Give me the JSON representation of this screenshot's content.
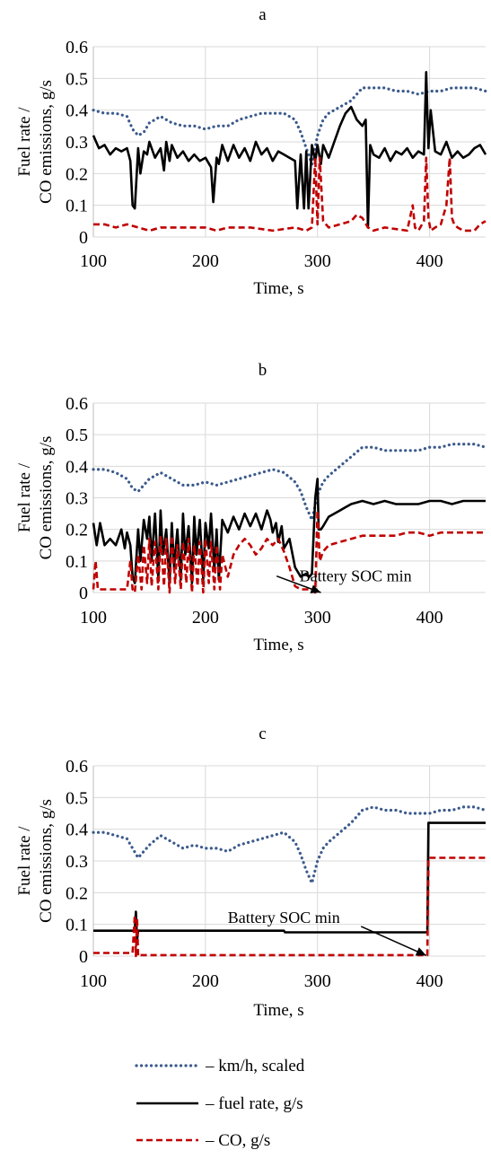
{
  "chart_data": [
    {
      "type": "line",
      "title": "a",
      "xlabel": "Time, s",
      "ylabel_line1": "Fuel rate /",
      "ylabel_line2": "CO emissions, g/s",
      "xlim": [
        100,
        450
      ],
      "ylim": [
        0,
        0.6
      ],
      "xticks": [
        100,
        200,
        300,
        400
      ],
      "yticks": [
        0,
        0.1,
        0.2,
        0.3,
        0.4,
        0.5,
        0.6
      ],
      "annotations": [],
      "series": [
        {
          "key": "speed",
          "style": "dotted",
          "color": "#3b5a8c",
          "x": [
            100,
            110,
            120,
            130,
            135,
            140,
            145,
            150,
            160,
            170,
            180,
            190,
            200,
            210,
            220,
            230,
            240,
            250,
            260,
            270,
            280,
            285,
            290,
            295,
            300,
            305,
            310,
            320,
            330,
            340,
            350,
            360,
            370,
            380,
            390,
            400,
            410,
            420,
            430,
            440,
            450
          ],
          "y": [
            0.4,
            0.39,
            0.39,
            0.38,
            0.34,
            0.32,
            0.33,
            0.36,
            0.38,
            0.36,
            0.35,
            0.35,
            0.34,
            0.35,
            0.35,
            0.37,
            0.38,
            0.39,
            0.39,
            0.39,
            0.37,
            0.33,
            0.28,
            0.23,
            0.32,
            0.37,
            0.39,
            0.41,
            0.43,
            0.47,
            0.47,
            0.47,
            0.46,
            0.46,
            0.45,
            0.46,
            0.46,
            0.47,
            0.47,
            0.47,
            0.46
          ]
        },
        {
          "key": "fuel",
          "style": "solid",
          "color": "#000000",
          "x": [
            100,
            105,
            110,
            115,
            120,
            125,
            130,
            133,
            135,
            137,
            140,
            142,
            145,
            148,
            150,
            155,
            160,
            163,
            165,
            168,
            170,
            175,
            180,
            185,
            190,
            195,
            200,
            205,
            207,
            210,
            212,
            215,
            220,
            225,
            230,
            235,
            240,
            245,
            250,
            255,
            260,
            265,
            270,
            275,
            280,
            282,
            285,
            288,
            290,
            292,
            295,
            298,
            300,
            303,
            305,
            310,
            315,
            320,
            325,
            330,
            335,
            340,
            343,
            345,
            347,
            350,
            355,
            360,
            365,
            370,
            375,
            380,
            385,
            390,
            395,
            397,
            399,
            401,
            405,
            410,
            415,
            420,
            425,
            430,
            435,
            440,
            445,
            450
          ],
          "y": [
            0.32,
            0.28,
            0.29,
            0.26,
            0.28,
            0.27,
            0.28,
            0.24,
            0.1,
            0.09,
            0.28,
            0.2,
            0.27,
            0.26,
            0.3,
            0.25,
            0.28,
            0.21,
            0.3,
            0.24,
            0.29,
            0.25,
            0.27,
            0.24,
            0.26,
            0.24,
            0.25,
            0.22,
            0.11,
            0.25,
            0.23,
            0.29,
            0.24,
            0.29,
            0.25,
            0.28,
            0.24,
            0.3,
            0.26,
            0.28,
            0.24,
            0.27,
            0.26,
            0.25,
            0.24,
            0.09,
            0.26,
            0.09,
            0.27,
            0.09,
            0.29,
            0.24,
            0.29,
            0.23,
            0.29,
            0.25,
            0.3,
            0.35,
            0.39,
            0.41,
            0.37,
            0.35,
            0.37,
            0.03,
            0.29,
            0.26,
            0.25,
            0.28,
            0.24,
            0.27,
            0.26,
            0.28,
            0.25,
            0.27,
            0.26,
            0.52,
            0.28,
            0.4,
            0.27,
            0.26,
            0.3,
            0.25,
            0.27,
            0.25,
            0.26,
            0.28,
            0.29,
            0.26
          ]
        },
        {
          "key": "co",
          "style": "dashed",
          "color": "#c00000",
          "x": [
            100,
            110,
            120,
            130,
            140,
            150,
            160,
            180,
            200,
            210,
            220,
            240,
            260,
            280,
            290,
            295,
            298,
            300,
            302,
            305,
            310,
            320,
            330,
            335,
            340,
            345,
            350,
            360,
            380,
            385,
            387,
            390,
            395,
            397,
            399,
            401,
            405,
            410,
            415,
            418,
            420,
            422,
            425,
            430,
            440,
            445,
            450
          ],
          "y": [
            0.04,
            0.04,
            0.03,
            0.04,
            0.03,
            0.02,
            0.03,
            0.03,
            0.03,
            0.02,
            0.03,
            0.03,
            0.02,
            0.03,
            0.02,
            0.03,
            0.25,
            0.04,
            0.25,
            0.05,
            0.03,
            0.04,
            0.05,
            0.07,
            0.06,
            0.03,
            0.02,
            0.03,
            0.02,
            0.1,
            0.03,
            0.02,
            0.05,
            0.25,
            0.06,
            0.02,
            0.03,
            0.04,
            0.1,
            0.25,
            0.06,
            0.04,
            0.03,
            0.02,
            0.02,
            0.04,
            0.05
          ]
        }
      ]
    },
    {
      "type": "line",
      "title": "b",
      "xlabel": "Time, s",
      "ylabel_line1": "Fuel rate /",
      "ylabel_line2": "CO emissions, g/s",
      "xlim": [
        100,
        450
      ],
      "ylim": [
        0,
        0.6
      ],
      "xticks": [
        100,
        200,
        300,
        400
      ],
      "yticks": [
        0,
        0.1,
        0.2,
        0.3,
        0.4,
        0.5,
        0.6
      ],
      "annotations": [
        {
          "text": "Battery SOC min",
          "x": 303,
          "y": 0.0,
          "text_x": 334,
          "text_y": 0.035
        }
      ],
      "series": [
        {
          "key": "speed",
          "style": "dotted",
          "color": "#3b5a8c",
          "x": [
            100,
            110,
            120,
            130,
            135,
            140,
            145,
            150,
            160,
            170,
            180,
            190,
            200,
            210,
            220,
            230,
            240,
            250,
            260,
            270,
            280,
            285,
            290,
            295,
            300,
            305,
            310,
            320,
            330,
            340,
            350,
            360,
            370,
            380,
            390,
            400,
            410,
            420,
            430,
            440,
            450
          ],
          "y": [
            0.39,
            0.39,
            0.38,
            0.36,
            0.33,
            0.32,
            0.34,
            0.36,
            0.38,
            0.36,
            0.34,
            0.34,
            0.35,
            0.34,
            0.35,
            0.36,
            0.37,
            0.38,
            0.39,
            0.38,
            0.35,
            0.32,
            0.27,
            0.23,
            0.31,
            0.35,
            0.37,
            0.4,
            0.43,
            0.46,
            0.46,
            0.45,
            0.45,
            0.45,
            0.45,
            0.46,
            0.46,
            0.47,
            0.47,
            0.47,
            0.46
          ]
        },
        {
          "key": "fuel",
          "style": "solid",
          "color": "#000000",
          "x": [
            100,
            103,
            106,
            110,
            115,
            120,
            125,
            128,
            130,
            133,
            135,
            137,
            140,
            142,
            145,
            148,
            150,
            152,
            155,
            158,
            160,
            162,
            165,
            168,
            170,
            172,
            175,
            178,
            180,
            182,
            185,
            188,
            190,
            192,
            195,
            198,
            200,
            203,
            205,
            208,
            210,
            212,
            215,
            220,
            225,
            230,
            235,
            240,
            245,
            250,
            255,
            258,
            260,
            263,
            265,
            268,
            270,
            275,
            280,
            285,
            290,
            293,
            295,
            298,
            300,
            301,
            303,
            305,
            310,
            320,
            330,
            340,
            350,
            360,
            370,
            380,
            390,
            400,
            410,
            420,
            430,
            440,
            450
          ],
          "y": [
            0.22,
            0.15,
            0.22,
            0.15,
            0.17,
            0.15,
            0.2,
            0.14,
            0.19,
            0.15,
            0.05,
            0.03,
            0.2,
            0.1,
            0.23,
            0.17,
            0.24,
            0.1,
            0.25,
            0.04,
            0.26,
            0.12,
            0.2,
            0.03,
            0.22,
            0.08,
            0.2,
            0.04,
            0.25,
            0.12,
            0.21,
            0.03,
            0.24,
            0.12,
            0.23,
            0.04,
            0.22,
            0.14,
            0.25,
            0.07,
            0.2,
            0.04,
            0.23,
            0.19,
            0.24,
            0.2,
            0.25,
            0.21,
            0.25,
            0.2,
            0.26,
            0.23,
            0.19,
            0.22,
            0.16,
            0.21,
            0.14,
            0.17,
            0.08,
            0.05,
            0.06,
            0.05,
            0.06,
            0.3,
            0.36,
            0.2,
            0.2,
            0.21,
            0.24,
            0.26,
            0.28,
            0.29,
            0.28,
            0.29,
            0.28,
            0.28,
            0.28,
            0.29,
            0.29,
            0.28,
            0.29,
            0.29,
            0.29
          ]
        },
        {
          "key": "co",
          "style": "dashed",
          "color": "#c00000",
          "x": [
            100,
            102,
            104,
            110,
            120,
            130,
            133,
            135,
            137,
            140,
            143,
            145,
            148,
            150,
            152,
            155,
            158,
            160,
            163,
            165,
            168,
            170,
            173,
            175,
            178,
            180,
            183,
            185,
            188,
            190,
            193,
            195,
            198,
            200,
            203,
            205,
            208,
            210,
            213,
            215,
            220,
            225,
            230,
            235,
            240,
            245,
            250,
            255,
            260,
            265,
            270,
            275,
            280,
            285,
            290,
            295,
            298,
            300,
            302,
            305,
            310,
            320,
            330,
            340,
            350,
            360,
            370,
            380,
            390,
            400,
            410,
            420,
            430,
            440,
            450
          ],
          "y": [
            0.01,
            0.1,
            0.01,
            0.01,
            0.01,
            0.01,
            0.1,
            0.01,
            0.0,
            0.12,
            0.01,
            0.15,
            0.03,
            0.17,
            0.02,
            0.16,
            0.01,
            0.18,
            0.02,
            0.17,
            0.0,
            0.18,
            0.03,
            0.15,
            0.01,
            0.16,
            0.03,
            0.17,
            0.0,
            0.15,
            0.02,
            0.16,
            0.0,
            0.17,
            0.03,
            0.16,
            0.01,
            0.15,
            0.01,
            0.12,
            0.05,
            0.12,
            0.15,
            0.17,
            0.15,
            0.12,
            0.14,
            0.17,
            0.15,
            0.17,
            0.13,
            0.08,
            0.02,
            0.01,
            0.01,
            0.01,
            0.0,
            0.26,
            0.1,
            0.13,
            0.15,
            0.16,
            0.17,
            0.18,
            0.18,
            0.18,
            0.18,
            0.19,
            0.19,
            0.18,
            0.19,
            0.19,
            0.19,
            0.19,
            0.19
          ]
        }
      ]
    },
    {
      "type": "line",
      "title": "c",
      "xlabel": "Time, s",
      "ylabel_line1": "Fuel rate /",
      "ylabel_line2": "CO emissions, g/s",
      "xlim": [
        100,
        450
      ],
      "ylim": [
        0,
        0.6
      ],
      "xticks": [
        100,
        200,
        300,
        400
      ],
      "yticks": [
        0,
        0.1,
        0.2,
        0.3,
        0.4,
        0.5,
        0.6
      ],
      "annotations": [
        {
          "text": "Battery SOC min",
          "x": 397,
          "y": 0.002,
          "text_x": 270,
          "text_y": 0.105
        }
      ],
      "series": [
        {
          "key": "speed",
          "style": "dotted",
          "color": "#3b5a8c",
          "x": [
            100,
            110,
            120,
            130,
            135,
            140,
            145,
            150,
            160,
            170,
            180,
            190,
            200,
            210,
            220,
            230,
            240,
            250,
            260,
            270,
            280,
            285,
            290,
            295,
            300,
            305,
            310,
            320,
            330,
            340,
            350,
            360,
            370,
            380,
            390,
            400,
            410,
            420,
            430,
            440,
            450
          ],
          "y": [
            0.39,
            0.39,
            0.38,
            0.37,
            0.34,
            0.31,
            0.33,
            0.35,
            0.38,
            0.36,
            0.34,
            0.35,
            0.34,
            0.34,
            0.33,
            0.35,
            0.36,
            0.37,
            0.38,
            0.39,
            0.36,
            0.32,
            0.27,
            0.23,
            0.3,
            0.34,
            0.36,
            0.39,
            0.42,
            0.46,
            0.47,
            0.46,
            0.46,
            0.45,
            0.45,
            0.45,
            0.46,
            0.46,
            0.47,
            0.47,
            0.46
          ]
        },
        {
          "key": "fuel",
          "style": "solid",
          "color": "#000000",
          "x": [
            100,
            137,
            138,
            139,
            140,
            141,
            270,
            271,
            398,
            399,
            450
          ],
          "y": [
            0.08,
            0.08,
            0.14,
            0.05,
            0.08,
            0.08,
            0.08,
            0.075,
            0.075,
            0.42,
            0.42
          ]
        },
        {
          "key": "co",
          "style": "dashed",
          "color": "#c00000",
          "x": [
            100,
            135,
            137,
            138,
            139,
            140,
            141,
            145,
            398,
            399,
            450
          ],
          "y": [
            0.01,
            0.01,
            0.13,
            0.0,
            0.12,
            0.0,
            0.003,
            0.003,
            0.003,
            0.31,
            0.31
          ]
        }
      ]
    }
  ],
  "legend": [
    {
      "key": "speed",
      "label": "– km/h, scaled",
      "style": "dotted",
      "color": "#3b5a8c"
    },
    {
      "key": "fuel",
      "label": "– fuel rate, g/s",
      "style": "solid",
      "color": "#000000"
    },
    {
      "key": "co",
      "label": "– CO, g/s",
      "style": "dashed",
      "color": "#c00000"
    }
  ]
}
